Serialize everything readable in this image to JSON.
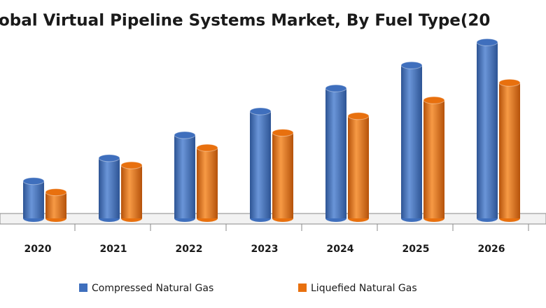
{
  "chart_data": {
    "type": "bar",
    "title": "obal Virtual Pipeline Systems Market, By Fuel Type(20",
    "categories": [
      "2020",
      "2021",
      "2022",
      "2023",
      "2024",
      "2025",
      "2026"
    ],
    "series": [
      {
        "name": "Compressed Natural Gas",
        "color": "#3f6fbd",
        "values": [
          47,
          76,
          105,
          135,
          164,
          193,
          222
        ]
      },
      {
        "name": "Liquefied Natural Gas",
        "color": "#e8700e",
        "values": [
          33,
          67,
          89,
          108,
          129,
          149,
          171
        ]
      }
    ],
    "ylim": [
      0,
      240
    ]
  }
}
